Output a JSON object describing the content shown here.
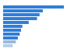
{
  "chart_data": {
    "type": "bar",
    "orientation": "horizontal",
    "categories": [
      null,
      null,
      null,
      null,
      null,
      null,
      null,
      null,
      null,
      null,
      null
    ],
    "values": [
      95,
      62,
      57,
      53,
      40,
      30,
      28,
      26,
      23,
      20,
      15
    ],
    "colors": [
      "#2f7ed8",
      "#2f7ed8",
      "#2f7ed8",
      "#2f7ed8",
      "#2f7ed8",
      "#2f7ed8",
      "#2f7ed8",
      "#2f7ed8",
      "#2f7ed8",
      "#9ab8dc",
      "#b9cde6"
    ],
    "xlim": [
      0,
      100
    ],
    "grid": false,
    "tick_labels": false
  }
}
